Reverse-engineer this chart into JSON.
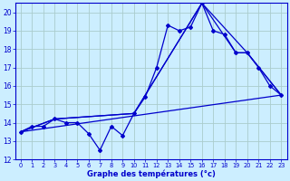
{
  "xlabel": "Graphe des températures (°c)",
  "background_color": "#cceeff",
  "line_color": "#0000cc",
  "grid_color": "#aacccc",
  "xlim": [
    -0.5,
    23.5
  ],
  "ylim": [
    12,
    20.5
  ],
  "xticks": [
    0,
    1,
    2,
    3,
    4,
    5,
    6,
    7,
    8,
    9,
    10,
    11,
    12,
    13,
    14,
    15,
    16,
    17,
    18,
    19,
    20,
    21,
    22,
    23
  ],
  "yticks": [
    12,
    13,
    14,
    15,
    16,
    17,
    18,
    19,
    20
  ],
  "series_main": {
    "x": [
      0,
      1,
      2,
      3,
      4,
      5,
      6,
      7,
      8,
      9,
      10,
      11,
      12,
      13,
      14,
      15,
      16,
      17,
      18,
      19,
      20,
      21,
      22,
      23
    ],
    "y": [
      13.5,
      13.8,
      13.8,
      14.2,
      14.0,
      14.0,
      13.4,
      12.5,
      13.8,
      13.3,
      14.5,
      15.4,
      17.0,
      19.3,
      19.0,
      19.2,
      20.5,
      19.0,
      18.8,
      17.8,
      17.8,
      17.0,
      16.0,
      15.5
    ]
  },
  "series_upper": {
    "x": [
      0,
      3,
      10,
      16,
      19,
      20,
      23
    ],
    "y": [
      13.5,
      14.2,
      14.5,
      20.5,
      17.8,
      17.8,
      15.5
    ]
  },
  "series_lower": {
    "x": [
      0,
      3,
      10,
      16,
      20,
      23
    ],
    "y": [
      13.5,
      14.2,
      14.5,
      20.5,
      17.8,
      15.5
    ]
  },
  "series_baseline": {
    "x": [
      0,
      23
    ],
    "y": [
      13.5,
      15.5
    ]
  }
}
